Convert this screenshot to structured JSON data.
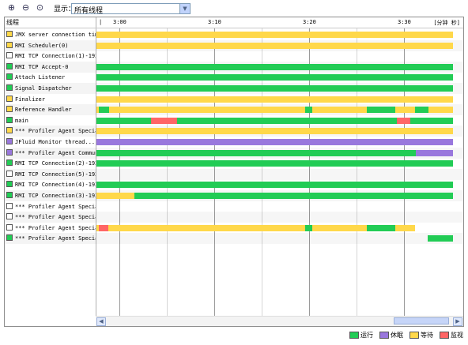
{
  "toolbar": {
    "show_label": "显示：",
    "filter_value": "所有线程"
  },
  "colors": {
    "running": "#22cc55",
    "sleeping": "#9977dd",
    "waiting": "#ffd84a",
    "monitor": "#ff6666",
    "grid_major": "#9a9a9a",
    "grid_minor": "#d6d6d6"
  },
  "header": {
    "threads_label": "线程",
    "ticks": [
      "3:00",
      "3:10",
      "3:20",
      "3:30"
    ],
    "unit": "[分钟 秒]"
  },
  "threads": [
    {
      "name": "JMX server connection tim...",
      "color": "waiting",
      "segments": [
        {
          "s": 0,
          "e": 1,
          "c": "waiting"
        }
      ]
    },
    {
      "name": "RMI Scheduler(0)",
      "color": "waiting",
      "segments": [
        {
          "s": 0,
          "e": 1,
          "c": "waiting"
        }
      ]
    },
    {
      "name": "RMI TCP Connection(1)-192....",
      "color": "none",
      "segments": []
    },
    {
      "name": "RMI TCP Accept-0",
      "color": "running",
      "segments": [
        {
          "s": 0,
          "e": 1,
          "c": "running"
        }
      ]
    },
    {
      "name": "Attach Listener",
      "color": "running",
      "segments": [
        {
          "s": 0,
          "e": 1,
          "c": "running"
        }
      ]
    },
    {
      "name": "Signal Dispatcher",
      "color": "running",
      "segments": [
        {
          "s": 0,
          "e": 1,
          "c": "running"
        }
      ]
    },
    {
      "name": "Finalizer",
      "color": "waiting",
      "segments": [
        {
          "s": 0,
          "e": 1,
          "c": "waiting"
        }
      ]
    },
    {
      "name": "Reference Handler",
      "color": "waiting",
      "segments": [
        {
          "s": 0,
          "e": 0.007,
          "c": "waiting"
        },
        {
          "s": 0.007,
          "e": 0.036,
          "c": "running"
        },
        {
          "s": 0.036,
          "e": 0.586,
          "c": "waiting"
        },
        {
          "s": 0.586,
          "e": 0.605,
          "c": "running"
        },
        {
          "s": 0.605,
          "e": 0.759,
          "c": "waiting"
        },
        {
          "s": 0.759,
          "e": 0.839,
          "c": "running"
        },
        {
          "s": 0.839,
          "e": 0.894,
          "c": "waiting"
        },
        {
          "s": 0.894,
          "e": 0.932,
          "c": "running"
        },
        {
          "s": 0.932,
          "e": 1,
          "c": "waiting"
        }
      ]
    },
    {
      "name": "main",
      "color": "running",
      "segments": [
        {
          "s": 0,
          "e": 0.154,
          "c": "running"
        },
        {
          "s": 0.154,
          "e": 0.227,
          "c": "monitor"
        },
        {
          "s": 0.227,
          "e": 0.843,
          "c": "running"
        },
        {
          "s": 0.843,
          "e": 0.881,
          "c": "monitor"
        },
        {
          "s": 0.881,
          "e": 1,
          "c": "running"
        }
      ]
    },
    {
      "name": "*** Profiler Agent Specia...",
      "color": "waiting",
      "segments": [
        {
          "s": 0,
          "e": 1,
          "c": "waiting"
        }
      ]
    },
    {
      "name": "JFluid Monitor thread...",
      "color": "sleeping",
      "segments": [
        {
          "s": 0,
          "e": 1,
          "c": "sleeping"
        }
      ]
    },
    {
      "name": "*** Profiler Agent Commun...",
      "color": "sleeping",
      "segments": [
        {
          "s": 0,
          "e": 0.895,
          "c": "running"
        },
        {
          "s": 0.895,
          "e": 1,
          "c": "sleeping"
        }
      ]
    },
    {
      "name": "RMI TCP Connection(2)-192...",
      "color": "running",
      "segments": [
        {
          "s": 0,
          "e": 1,
          "c": "running"
        }
      ]
    },
    {
      "name": "RMI TCP Connection(5)-192...",
      "color": "none",
      "segments": []
    },
    {
      "name": "RMI TCP Connection(4)-192...",
      "color": "running",
      "segments": [
        {
          "s": 0,
          "e": 1,
          "c": "running"
        }
      ]
    },
    {
      "name": "RMI TCP Connection(3)-192...",
      "color": "running",
      "segments": [
        {
          "s": 0,
          "e": 0.106,
          "c": "waiting"
        },
        {
          "s": 0.106,
          "e": 1,
          "c": "running"
        }
      ]
    },
    {
      "name": "*** Profiler Agent Specia...",
      "color": "none",
      "segments": []
    },
    {
      "name": "*** Profiler Agent Specia...",
      "color": "none",
      "segments": []
    },
    {
      "name": "*** Profiler Agent Specia...",
      "color": "none",
      "segments": [
        {
          "s": 0,
          "e": 0.007,
          "c": "waiting"
        },
        {
          "s": 0.007,
          "e": 0.033,
          "c": "monitor"
        },
        {
          "s": 0.033,
          "e": 0.586,
          "c": "waiting"
        },
        {
          "s": 0.586,
          "e": 0.605,
          "c": "running"
        },
        {
          "s": 0.605,
          "e": 0.759,
          "c": "waiting"
        },
        {
          "s": 0.759,
          "e": 0.839,
          "c": "running"
        },
        {
          "s": 0.839,
          "e": 0.894,
          "c": "waiting"
        }
      ]
    },
    {
      "name": "*** Profiler Agent Specia...",
      "color": "running",
      "segments": [
        {
          "s": 0.93,
          "e": 1,
          "c": "running"
        }
      ]
    }
  ],
  "legend": [
    {
      "label": "运行",
      "color": "running"
    },
    {
      "label": "休眠",
      "color": "sleeping"
    },
    {
      "label": "等待",
      "color": "waiting"
    },
    {
      "label": "监视",
      "color": "monitor"
    }
  ]
}
